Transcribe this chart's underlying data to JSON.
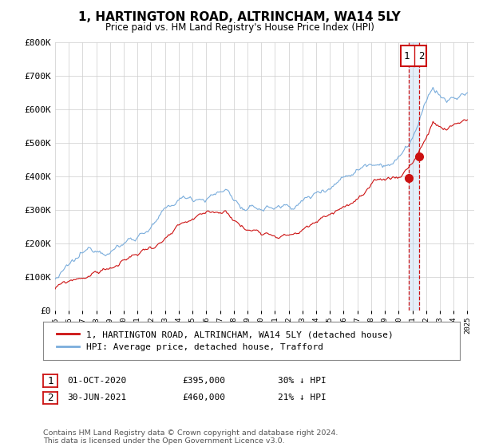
{
  "title": "1, HARTINGTON ROAD, ALTRINCHAM, WA14 5LY",
  "subtitle": "Price paid vs. HM Land Registry's House Price Index (HPI)",
  "hpi_label": "HPI: Average price, detached house, Trafford",
  "price_label": "1, HARTINGTON ROAD, ALTRINCHAM, WA14 5LY (detached house)",
  "footer": "Contains HM Land Registry data © Crown copyright and database right 2024.\nThis data is licensed under the Open Government Licence v3.0.",
  "annotation1": {
    "num": "1",
    "date": "01-OCT-2020",
    "price": "£395,000",
    "pct": "30% ↓ HPI"
  },
  "annotation2": {
    "num": "2",
    "date": "30-JUN-2021",
    "price": "£460,000",
    "pct": "21% ↓ HPI"
  },
  "point1_x": 2020.75,
  "point1_y": 395000,
  "point2_x": 2021.5,
  "point2_y": 460000,
  "ylim": [
    0,
    800000
  ],
  "xlim_start": 1995.0,
  "xlim_end": 2025.5,
  "hpi_color": "#7aaddc",
  "price_color": "#cc1111",
  "dashed_color": "#cc1111",
  "box_color": "#cc1111",
  "grid_color": "#cccccc",
  "background": "#ffffff"
}
